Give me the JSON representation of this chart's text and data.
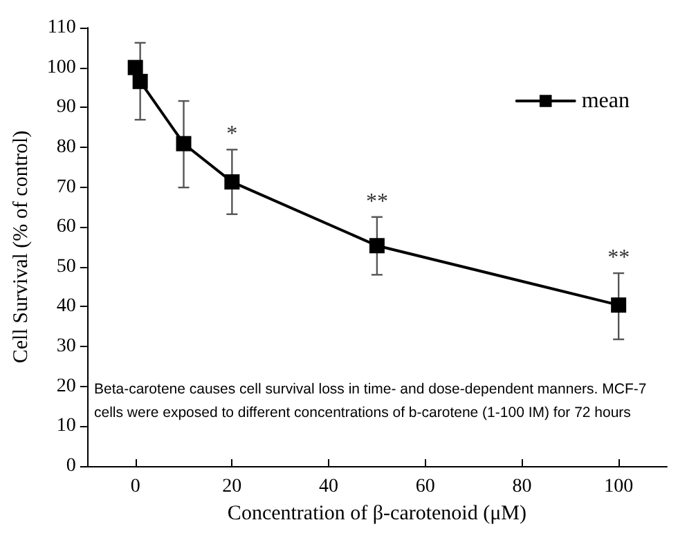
{
  "chart_data": {
    "type": "line",
    "xlabel": "Concentration of β-carotenoid (μM)",
    "ylabel": "Cell Survival (% of control)",
    "x": [
      0,
      1,
      10,
      20,
      50,
      100
    ],
    "series": [
      {
        "name": "mean",
        "color": "#000000",
        "values": [
          100,
          96.5,
          80.9,
          71.3,
          55.3,
          40.4
        ],
        "errors": [
          null,
          [
            86.9,
            106.2
          ],
          [
            69.9,
            91.6
          ],
          [
            63.2,
            79.4
          ],
          [
            48,
            62.5
          ],
          [
            31.8,
            48.4
          ]
        ]
      }
    ],
    "xlim": [
      -10,
      110
    ],
    "xticks": [
      0,
      20,
      40,
      60,
      80,
      100
    ],
    "ylim": [
      0,
      110
    ],
    "yticks": [
      0,
      10,
      20,
      30,
      40,
      50,
      60,
      70,
      80,
      90,
      100,
      110
    ],
    "marker": "square",
    "line_style": "solid",
    "grid": false,
    "legend": "top right",
    "annotations": [
      {
        "text": "*",
        "x": 20,
        "y": 79.4
      },
      {
        "text": "**",
        "x": 50,
        "y": 62.5
      },
      {
        "text": "**",
        "x": 100,
        "y": 48.4
      },
      "Beta-carotene causes cell survival loss in time- and dose-dependent manners. MCF-7 cells were exposed to different concentrations of b-carotene (1-100 IM) for 72 hours"
    ]
  }
}
